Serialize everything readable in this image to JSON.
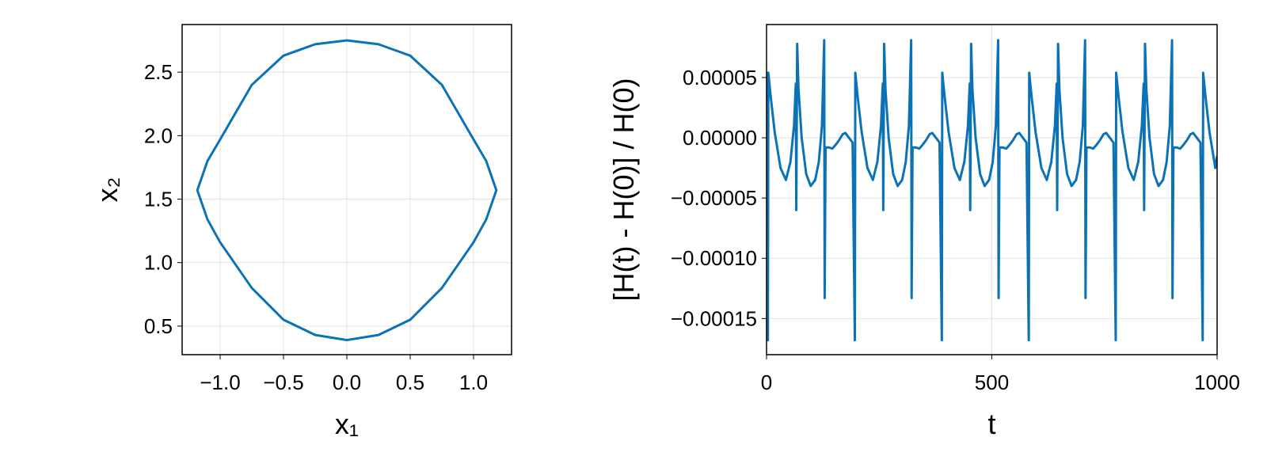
{
  "chart_data": [
    {
      "type": "line",
      "xlabel": "x₁",
      "ylabel": "x₂",
      "grid": true,
      "x": [
        0,
        0.25,
        0.5,
        0.75,
        1.0,
        1.1,
        1.18,
        1.1,
        1.0,
        0.75,
        0.5,
        0.25,
        0,
        -0.25,
        -0.5,
        -0.75,
        -1.0,
        -1.1,
        -1.18,
        -1.1,
        -1.0,
        -0.75,
        -0.5,
        -0.25,
        0
      ],
      "series": [
        {
          "color": "#0a72b5",
          "values": [
            2.75,
            2.72,
            2.63,
            2.4,
            1.97,
            1.8,
            1.57,
            1.34,
            1.16,
            0.8,
            0.55,
            0.43,
            0.39,
            0.43,
            0.55,
            0.8,
            1.16,
            1.34,
            1.57,
            1.8,
            1.97,
            2.4,
            2.63,
            2.72,
            2.75
          ]
        }
      ],
      "xlim": [
        -1.3,
        1.3
      ],
      "ylim": [
        0.275,
        2.875
      ],
      "xticks": [
        {
          "value": -1.0,
          "label": "−1.0"
        },
        {
          "value": -0.5,
          "label": "−0.5"
        },
        {
          "value": 0,
          "label": "0.0"
        },
        {
          "value": 0.5,
          "label": "0.5"
        },
        {
          "value": 1.0,
          "label": "1.0"
        }
      ],
      "yticks": [
        {
          "value": 0.5,
          "label": "0.5"
        },
        {
          "value": 1.0,
          "label": "1.0"
        },
        {
          "value": 1.5,
          "label": "1.5"
        },
        {
          "value": 2.0,
          "label": "2.0"
        },
        {
          "value": 2.5,
          "label": "2.5"
        }
      ]
    },
    {
      "type": "line",
      "xlabel": "t",
      "ylabel": "[H(t) - H(0)] / H(0)",
      "grid": true,
      "x": [
        0,
        3,
        4,
        9,
        18,
        31,
        43,
        53,
        61,
        65,
        66,
        68,
        71,
        78,
        88,
        98,
        108,
        116,
        123,
        128,
        129,
        131,
        138,
        146,
        153,
        161,
        169,
        175,
        183,
        191,
        196,
        197,
        202,
        211,
        224,
        236,
        246,
        254,
        258,
        259,
        261,
        264,
        271,
        281,
        291,
        301,
        309,
        316,
        321,
        322,
        324,
        331,
        339,
        346,
        354,
        362,
        368,
        376,
        384,
        389,
        390,
        395,
        404,
        417,
        429,
        439,
        447,
        451,
        452,
        454,
        457,
        464,
        474,
        484,
        494,
        502,
        509,
        514,
        515,
        517,
        524,
        532,
        539,
        547,
        555,
        561,
        569,
        577,
        582,
        583,
        588,
        597,
        610,
        622,
        632,
        640,
        644,
        645,
        647,
        650,
        657,
        667,
        677,
        687,
        695,
        702,
        707,
        708,
        710,
        717,
        725,
        732,
        740,
        748,
        754,
        762,
        770,
        775,
        776,
        781,
        790,
        803,
        815,
        825,
        833,
        837,
        838,
        840,
        843,
        850,
        860,
        870,
        880,
        888,
        895,
        900,
        901,
        903,
        910,
        918,
        925,
        933,
        941,
        947,
        955,
        963,
        968,
        969,
        974,
        983,
        996,
        1000
      ],
      "series": [
        {
          "color": "#0a72b5",
          "values": [
            5.5e-05,
            -0.000168,
            5.4e-05,
            3.5e-05,
            5e-06,
            -2.5e-05,
            -3.5e-05,
            -2e-05,
            1e-05,
            4.5e-05,
            -6e-05,
            7.8e-05,
            4e-05,
            0,
            -3e-05,
            -4e-05,
            -3.5e-05,
            -2e-05,
            1e-05,
            8.1e-05,
            -0.000133,
            -8e-06,
            -8e-06,
            -9e-06,
            -6e-06,
            -2e-06,
            3e-06,
            4e-06,
            0,
            -4e-06,
            -0.000168,
            5.4e-05,
            3.5e-05,
            5e-06,
            -2.5e-05,
            -3.5e-05,
            -2e-05,
            1e-05,
            4.5e-05,
            -6e-05,
            7.8e-05,
            4e-05,
            0,
            -3e-05,
            -4e-05,
            -3.5e-05,
            -2e-05,
            1e-05,
            8.1e-05,
            -0.000133,
            -8e-06,
            -8e-06,
            -9e-06,
            -6e-06,
            -2e-06,
            3e-06,
            4e-06,
            0,
            -4e-06,
            -0.000168,
            5.4e-05,
            3.5e-05,
            5e-06,
            -2.5e-05,
            -3.5e-05,
            -2e-05,
            1e-05,
            4.5e-05,
            -6e-05,
            7.8e-05,
            4e-05,
            0,
            -3e-05,
            -4e-05,
            -3.5e-05,
            -2e-05,
            1e-05,
            8.1e-05,
            -0.000133,
            -8e-06,
            -8e-06,
            -9e-06,
            -6e-06,
            -2e-06,
            3e-06,
            4e-06,
            0,
            -4e-06,
            -0.000168,
            5.4e-05,
            3.5e-05,
            5e-06,
            -2.5e-05,
            -3.5e-05,
            -2e-05,
            1e-05,
            4.5e-05,
            -6e-05,
            7.8e-05,
            4e-05,
            0,
            -3e-05,
            -4e-05,
            -3.5e-05,
            -2e-05,
            1e-05,
            8.1e-05,
            -0.000133,
            -8e-06,
            -8e-06,
            -9e-06,
            -6e-06,
            -2e-06,
            3e-06,
            4e-06,
            0,
            -4e-06,
            -0.000168,
            5.4e-05,
            3.5e-05,
            5e-06,
            -2.5e-05,
            -3.5e-05,
            -2e-05,
            1e-05,
            4.5e-05,
            -6e-05,
            7.8e-05,
            4e-05,
            0,
            -3e-05,
            -4e-05,
            -3.5e-05,
            -2e-05,
            1e-05,
            8.1e-05,
            -0.000133,
            -8e-06,
            -8e-06,
            -9e-06,
            -6e-06,
            -2e-06,
            3e-06,
            4e-06,
            0,
            -4e-06,
            -0.000168,
            5.4e-05,
            3.5e-05,
            5e-06,
            -2.5e-05,
            -1.5e-05
          ]
        }
      ],
      "xlim": [
        0,
        1000
      ],
      "ylim": [
        -0.00018,
        9.4e-05
      ],
      "xticks": [
        0,
        500,
        1000
      ],
      "yticks": [
        {
          "value": -0.00015,
          "label": "−0.00015"
        },
        {
          "value": -0.0001,
          "label": "−0.00010"
        },
        {
          "value": -5e-05,
          "label": "−0.00005"
        },
        {
          "value": 0,
          "label": "0.00000"
        },
        {
          "value": 5e-05,
          "label": "0.00005"
        }
      ]
    }
  ]
}
